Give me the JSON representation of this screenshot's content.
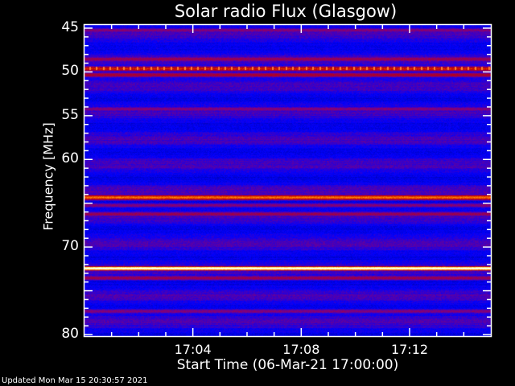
{
  "chart_data": {
    "type": "heatmap",
    "title": "Solar radio Flux (Glasgow)",
    "xlabel": "Start Time (06-Mar-21 17:00:00)",
    "ylabel": "Frequency [MHz]",
    "x_ticks": [
      "17:04",
      "17:08",
      "17:12"
    ],
    "x_tick_minutes": [
      4,
      8,
      12
    ],
    "xlim_minutes": [
      0,
      15
    ],
    "y_ticks": [
      "45",
      "50",
      "55",
      "60",
      "70",
      "80"
    ],
    "y_tick_values": [
      45,
      50,
      55,
      60,
      70,
      80
    ],
    "ylim": [
      45,
      80
    ],
    "y_inverted": true,
    "colormap": [
      "#000080",
      "#0000ff",
      "#800080",
      "#c00000",
      "#ff8000",
      "#ffff80",
      "#ffffff"
    ],
    "bands": [
      {
        "freq": 45.2,
        "level": 0.35
      },
      {
        "freq": 48.5,
        "level": 0.4
      },
      {
        "freq": 49.6,
        "level": 0.55
      },
      {
        "freq": 50.3,
        "level": 0.45
      },
      {
        "freq": 54.2,
        "level": 0.35
      },
      {
        "freq": 59.0,
        "level": 0.1
      },
      {
        "freq": 59.9,
        "level": 0.1
      },
      {
        "freq": 64.3,
        "level": 0.65
      },
      {
        "freq": 65.2,
        "level": 0.35
      },
      {
        "freq": 66.2,
        "level": 0.4
      },
      {
        "freq": 72.4,
        "level": 1.0
      },
      {
        "freq": 73.5,
        "level": 0.4
      },
      {
        "freq": 77.3,
        "level": 0.35
      }
    ]
  },
  "footer": {
    "updated": "Updated Mon Mar 15 20:30:57 2021"
  }
}
